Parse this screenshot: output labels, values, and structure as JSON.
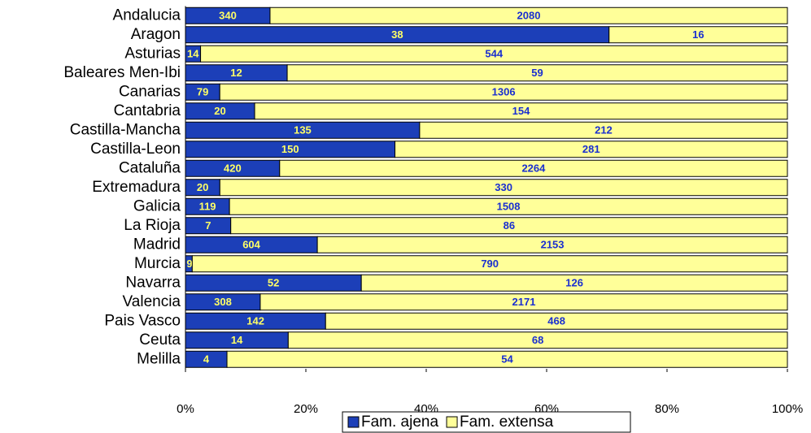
{
  "chart_data": {
    "type": "bar",
    "orientation": "horizontal",
    "stacked": "percent",
    "categories": [
      "Andalucia",
      "Aragon",
      "Asturias",
      "Baleares Men-Ibi",
      "Canarias",
      "Cantabria",
      "Castilla-Mancha",
      "Castilla-Leon",
      "Cataluña",
      "Extremadura",
      "Galicia",
      "La Rioja",
      "Madrid",
      "Murcia",
      "Navarra",
      "Valencia",
      "Pais Vasco",
      "Ceuta ",
      "Melilla"
    ],
    "series": [
      {
        "name": "Fam. ajena",
        "color": "#1c3fb8",
        "label_color": "#ffff66",
        "values": [
          340,
          38,
          14,
          12,
          79,
          20,
          135,
          150,
          420,
          20,
          119,
          7,
          604,
          9,
          52,
          308,
          142,
          14,
          4
        ]
      },
      {
        "name": "Fam. extensa",
        "color": "#ffff99",
        "label_color": "#1a2fd0",
        "values": [
          2080,
          16,
          544,
          59,
          1306,
          154,
          212,
          281,
          2264,
          330,
          1508,
          86,
          2153,
          790,
          126,
          2171,
          468,
          68,
          54
        ]
      }
    ],
    "xlim": [
      0,
      100
    ],
    "xticks": [
      {
        "value": 0,
        "label": "0%"
      },
      {
        "value": 20,
        "label": "20%"
      },
      {
        "value": 40,
        "label": "40%"
      },
      {
        "value": 60,
        "label": "60%"
      },
      {
        "value": 80,
        "label": "80%"
      },
      {
        "value": 100,
        "label": "100%"
      }
    ],
    "legend": "bottom"
  }
}
